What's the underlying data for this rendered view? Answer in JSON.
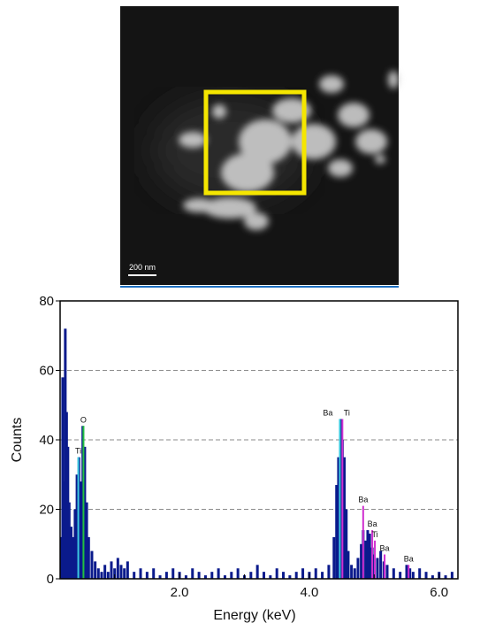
{
  "image": {
    "scale_bar": "200 nm"
  },
  "chart_data": {
    "type": "spectrum",
    "x_label": "Energy (keV)",
    "y_label": "Counts",
    "xlim": [
      0.16,
      6.29
    ],
    "ylim": [
      0,
      80
    ],
    "xticks": [
      {
        "value": 2,
        "label": "2.0"
      },
      {
        "value": 4,
        "label": "4.0"
      },
      {
        "value": 6,
        "label": "6.0"
      }
    ],
    "minor_xticks": [
      1,
      3,
      5
    ],
    "yticks": [
      0,
      20,
      40,
      60,
      80
    ],
    "grid_values": [
      20,
      40,
      60
    ],
    "color": "#0a1a8c",
    "x": [
      0.18,
      0.2,
      0.22,
      0.24,
      0.26,
      0.28,
      0.3,
      0.33,
      0.36,
      0.39,
      0.42,
      0.45,
      0.48,
      0.51,
      0.54,
      0.57,
      0.6,
      0.65,
      0.7,
      0.75,
      0.8,
      0.85,
      0.9,
      0.95,
      1.0,
      1.05,
      1.1,
      1.15,
      1.2,
      1.3,
      1.4,
      1.5,
      1.6,
      1.7,
      1.8,
      1.9,
      2.0,
      2.1,
      2.2,
      2.3,
      2.4,
      2.5,
      2.6,
      2.7,
      2.8,
      2.9,
      3.0,
      3.1,
      3.2,
      3.3,
      3.4,
      3.5,
      3.6,
      3.7,
      3.8,
      3.9,
      4.0,
      4.1,
      4.2,
      4.3,
      4.38,
      4.42,
      4.45,
      4.48,
      4.51,
      4.54,
      4.57,
      4.6,
      4.65,
      4.7,
      4.75,
      4.8,
      4.83,
      4.87,
      4.9,
      4.93,
      4.97,
      5.0,
      5.05,
      5.1,
      5.15,
      5.2,
      5.3,
      5.4,
      5.5,
      5.55,
      5.6,
      5.7,
      5.8,
      5.9,
      6.0,
      6.1,
      6.2
    ],
    "values": [
      12,
      58,
      28,
      72,
      48,
      38,
      22,
      15,
      12,
      20,
      30,
      35,
      28,
      44,
      38,
      22,
      12,
      8,
      5,
      3,
      2,
      4,
      2,
      5,
      3,
      6,
      4,
      3,
      5,
      2,
      3,
      2,
      3,
      1,
      2,
      3,
      2,
      1,
      3,
      2,
      1,
      2,
      3,
      1,
      2,
      3,
      1,
      2,
      4,
      2,
      1,
      3,
      2,
      1,
      2,
      3,
      2,
      3,
      2,
      4,
      12,
      27,
      35,
      46,
      40,
      35,
      20,
      8,
      4,
      3,
      6,
      10,
      14,
      11,
      14,
      13,
      9,
      7,
      6,
      8,
      5,
      4,
      3,
      2,
      4,
      3,
      2,
      3,
      2,
      1,
      2,
      1,
      2
    ],
    "peaks": [
      {
        "label": "Ti",
        "x": 0.44,
        "height": 35,
        "color": "#3cc8e0"
      },
      {
        "label": "O",
        "x": 0.52,
        "height": 44,
        "color": "#22c040"
      },
      {
        "label": "Ba",
        "x": 4.47,
        "height": 46,
        "color": "#3cc8e0"
      },
      {
        "label": "Ti",
        "x": 4.51,
        "height": 46,
        "color": "#d030d0"
      },
      {
        "label": "Ba",
        "x": 4.83,
        "height": 21,
        "color": "#d030d0"
      },
      {
        "label": "Ba",
        "x": 4.97,
        "height": 14,
        "color": "#d030d0"
      },
      {
        "label": "Ti",
        "x": 5.01,
        "height": 11,
        "color": "#d030d0"
      },
      {
        "label": "Ba",
        "x": 5.16,
        "height": 7,
        "color": "#d030d0"
      },
      {
        "label": "Ba",
        "x": 5.53,
        "height": 4,
        "color": "#d030d0"
      }
    ]
  }
}
